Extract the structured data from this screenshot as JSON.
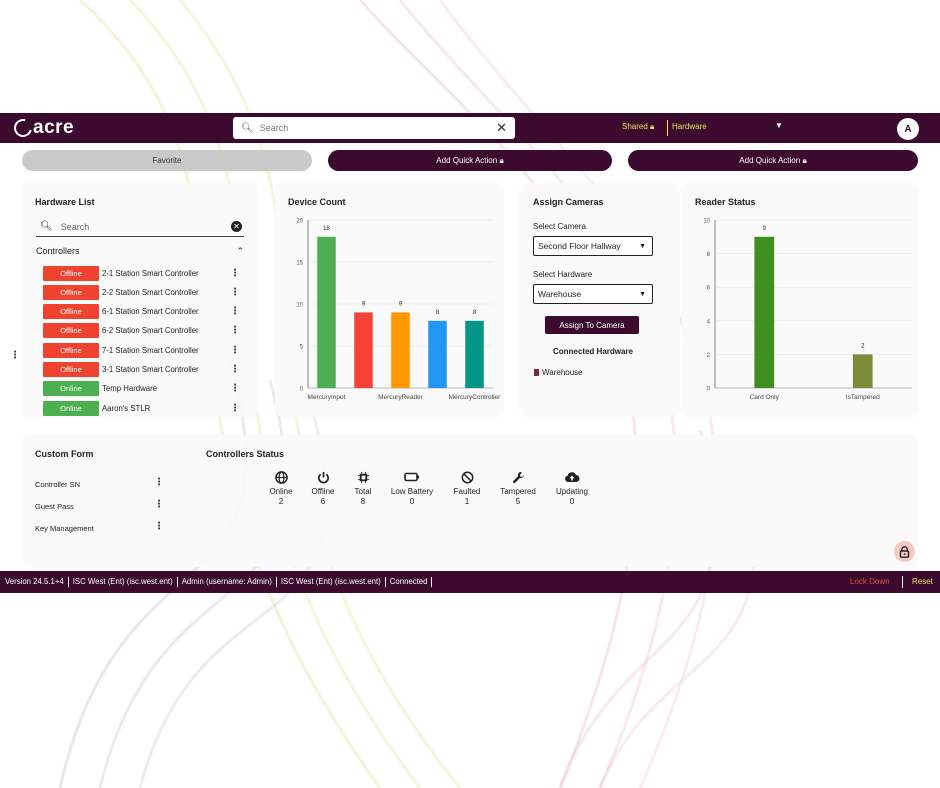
{
  "brand": {
    "logo_text": "acre"
  },
  "topbar": {
    "search_placeholder": "Search",
    "shared_label": "Shared",
    "hardware_select": "Hardware",
    "avatar_initial": "A"
  },
  "quick_actions": {
    "favorite": "Favorite",
    "action1": "Add Quick Action",
    "action2": "Add Quick Action"
  },
  "hardware_list": {
    "title": "Hardware List",
    "search_placeholder": "Search",
    "section_label": "Controllers",
    "items": [
      {
        "status": "Offline",
        "name": "2-1 Station Smart Controller"
      },
      {
        "status": "Offline",
        "name": "2-2 Station Smart Controller"
      },
      {
        "status": "Offline",
        "name": "6-1 Station Smart Controller"
      },
      {
        "status": "Offline",
        "name": "6-2 Station Smart Controller"
      },
      {
        "status": "Offline",
        "name": "7-1 Station Smart Controller"
      },
      {
        "status": "Offline",
        "name": "3-1 Station Smart Controller"
      },
      {
        "status": "Online",
        "name": "Temp Hardware"
      },
      {
        "status": "Online",
        "name": "Aaron's STLR"
      }
    ]
  },
  "device_count": {
    "title": "Device Count",
    "chart_data": {
      "type": "bar",
      "categories": [
        "MercuryInput",
        "",
        "MercuryReader",
        "",
        "MercuryController"
      ],
      "values": [
        18,
        9,
        9,
        8,
        8
      ],
      "colors": [
        "#4caf50",
        "#f44336",
        "#ff9800",
        "#2196f3",
        "#009688"
      ],
      "ylim": [
        0,
        20
      ],
      "yticks": [
        0,
        5,
        10,
        15,
        20
      ],
      "title": "",
      "xlabel": "",
      "ylabel": ""
    }
  },
  "assign_cameras": {
    "title": "Assign Cameras",
    "camera_label": "Select Camera",
    "camera_value": "Second Floor Hallway",
    "hardware_label": "Select Hardware",
    "hardware_value": "Warehouse",
    "button": "Assign To Camera",
    "connected_title": "Connected Hardware",
    "connected_item": "Warehouse"
  },
  "reader_status": {
    "title": "Reader Status",
    "chart_data": {
      "type": "bar",
      "categories": [
        "Card Only",
        "IsTampered"
      ],
      "values": [
        9,
        2
      ],
      "colors": [
        "#3f8f1f",
        "#7a8b3a"
      ],
      "ylim": [
        0,
        10
      ],
      "yticks": [
        0,
        2,
        4,
        6,
        8,
        10
      ],
      "title": "",
      "xlabel": "",
      "ylabel": ""
    }
  },
  "custom_form": {
    "title": "Custom Form",
    "items": [
      "Controller SN",
      "Guest Pass",
      "Key Management"
    ]
  },
  "controllers_status": {
    "title": "Controllers Status",
    "stats": [
      {
        "icon": "globe-icon",
        "label": "Online",
        "value": "2"
      },
      {
        "icon": "power-icon",
        "label": "Offline",
        "value": "6"
      },
      {
        "icon": "chip-icon",
        "label": "Total",
        "value": "8"
      },
      {
        "icon": "battery-icon",
        "label": "Low Battery",
        "value": "0"
      },
      {
        "icon": "blocked-icon",
        "label": "Faulted",
        "value": "1"
      },
      {
        "icon": "wrench-icon",
        "label": "Tampered",
        "value": "5"
      },
      {
        "icon": "cloud-upload-icon",
        "label": "Updating",
        "value": "0"
      }
    ]
  },
  "statusbar": {
    "version": "Version 24.5.1+4",
    "server": "ISC West (Ent) (isc.west.ent)",
    "user": "Admin (username: Admin)",
    "server2": "ISC West (Ent) (isc.west.ent)",
    "connection": "Connected",
    "lockdown": "Lock Down",
    "reset": "Reset"
  }
}
